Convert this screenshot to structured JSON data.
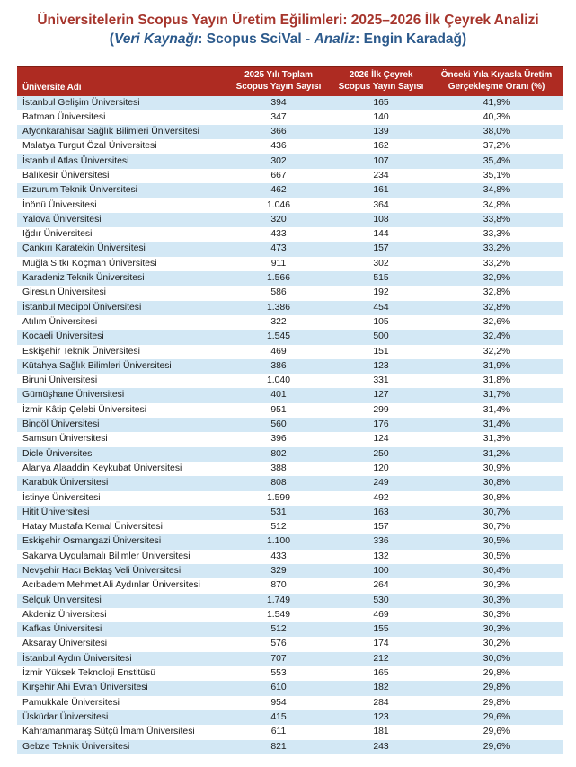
{
  "colors": {
    "title_red": "#A6352C",
    "subtitle_blue": "#2C5A8C",
    "header_bg": "#AE2B22",
    "header_border": "#811E14",
    "stripe_blue": "#D3E8F5",
    "text_dark": "#1B1B1B"
  },
  "header": {
    "title": "Üniversitelerin Scopus Yayın Üretim Eğilimleri: 2025–2026 İlk Çeyrek Analizi",
    "subtitle_parts": {
      "p1": "(",
      "p2": "Veri Kaynağı",
      "p3": ": Scopus SciVal - ",
      "p4": "Analiz",
      "p5": ": Engin Karadağ)"
    }
  },
  "table": {
    "columns": [
      {
        "label": "Üniversite Adı"
      },
      {
        "line1": "2025 Yılı Toplam",
        "line2": "Scopus Yayın Sayısı"
      },
      {
        "line1": "2026 İlk Çeyrek",
        "line2": "Scopus Yayın Sayısı"
      },
      {
        "line1": "Önceki Yıla Kıyasla Üretim",
        "line2": "Gerçekleşme Oranı (%)"
      }
    ],
    "rows": [
      [
        "İstanbul Gelişim Üniversitesi",
        "394",
        "165",
        "41,9%"
      ],
      [
        "Batman Üniversitesi",
        "347",
        "140",
        "40,3%"
      ],
      [
        "Afyonkarahisar Sağlık Bilimleri Üniversitesi",
        "366",
        "139",
        "38,0%"
      ],
      [
        "Malatya Turgut Özal Üniversitesi",
        "436",
        "162",
        "37,2%"
      ],
      [
        "İstanbul Atlas Üniversitesi",
        "302",
        "107",
        "35,4%"
      ],
      [
        "Balıkesir Üniversitesi",
        "667",
        "234",
        "35,1%"
      ],
      [
        "Erzurum Teknik Üniversitesi",
        "462",
        "161",
        "34,8%"
      ],
      [
        "İnönü Üniversitesi",
        "1.046",
        "364",
        "34,8%"
      ],
      [
        "Yalova Üniversitesi",
        "320",
        "108",
        "33,8%"
      ],
      [
        "Iğdır Üniversitesi",
        "433",
        "144",
        "33,3%"
      ],
      [
        "Çankırı Karatekin Üniversitesi",
        "473",
        "157",
        "33,2%"
      ],
      [
        "Muğla Sıtkı Koçman Üniversitesi",
        "911",
        "302",
        "33,2%"
      ],
      [
        "Karadeniz Teknik Üniversitesi",
        "1.566",
        "515",
        "32,9%"
      ],
      [
        "Giresun Üniversitesi",
        "586",
        "192",
        "32,8%"
      ],
      [
        "İstanbul Medipol Üniversitesi",
        "1.386",
        "454",
        "32,8%"
      ],
      [
        "Atılım Üniversitesi",
        "322",
        "105",
        "32,6%"
      ],
      [
        "Kocaeli Üniversitesi",
        "1.545",
        "500",
        "32,4%"
      ],
      [
        "Eskişehir Teknik Üniversitesi",
        "469",
        "151",
        "32,2%"
      ],
      [
        "Kütahya Sağlık Bilimleri Üniversitesi",
        "386",
        "123",
        "31,9%"
      ],
      [
        "Biruni Üniversitesi",
        "1.040",
        "331",
        "31,8%"
      ],
      [
        "Gümüşhane Üniversitesi",
        "401",
        "127",
        "31,7%"
      ],
      [
        "İzmir Kâtip Çelebi Üniversitesi",
        "951",
        "299",
        "31,4%"
      ],
      [
        "Bingöl Üniversitesi",
        "560",
        "176",
        "31,4%"
      ],
      [
        "Samsun Üniversitesi",
        "396",
        "124",
        "31,3%"
      ],
      [
        "Dicle Üniversitesi",
        "802",
        "250",
        "31,2%"
      ],
      [
        "Alanya Alaaddin Keykubat Üniversitesi",
        "388",
        "120",
        "30,9%"
      ],
      [
        "Karabük Üniversitesi",
        "808",
        "249",
        "30,8%"
      ],
      [
        "İstinye Üniversitesi",
        "1.599",
        "492",
        "30,8%"
      ],
      [
        "Hitit Üniversitesi",
        "531",
        "163",
        "30,7%"
      ],
      [
        "Hatay Mustafa Kemal Üniversitesi",
        "512",
        "157",
        "30,7%"
      ],
      [
        "Eskişehir Osmangazi Üniversitesi",
        "1.100",
        "336",
        "30,5%"
      ],
      [
        "Sakarya Uygulamalı Bilimler Üniversitesi",
        "433",
        "132",
        "30,5%"
      ],
      [
        "Nevşehir Hacı Bektaş Veli Üniversitesi",
        "329",
        "100",
        "30,4%"
      ],
      [
        "Acıbadem Mehmet Ali Aydınlar Üniversitesi",
        "870",
        "264",
        "30,3%"
      ],
      [
        "Selçuk Üniversitesi",
        "1.749",
        "530",
        "30,3%"
      ],
      [
        "Akdeniz Üniversitesi",
        "1.549",
        "469",
        "30,3%"
      ],
      [
        "Kafkas Üniversitesi",
        "512",
        "155",
        "30,3%"
      ],
      [
        "Aksaray Üniversitesi",
        "576",
        "174",
        "30,2%"
      ],
      [
        "İstanbul Aydın Üniversitesi",
        "707",
        "212",
        "30,0%"
      ],
      [
        "İzmir Yüksek Teknoloji Enstitüsü",
        "553",
        "165",
        "29,8%"
      ],
      [
        "Kırşehir Ahi Evran Üniversitesi",
        "610",
        "182",
        "29,8%"
      ],
      [
        "Pamukkale Üniversitesi",
        "954",
        "284",
        "29,8%"
      ],
      [
        "Üsküdar Üniversitesi",
        "415",
        "123",
        "29,6%"
      ],
      [
        "Kahramanmaraş Sütçü İmam Üniversitesi",
        "611",
        "181",
        "29,6%"
      ],
      [
        "Gebze Teknik Üniversitesi",
        "821",
        "243",
        "29,6%"
      ]
    ]
  }
}
